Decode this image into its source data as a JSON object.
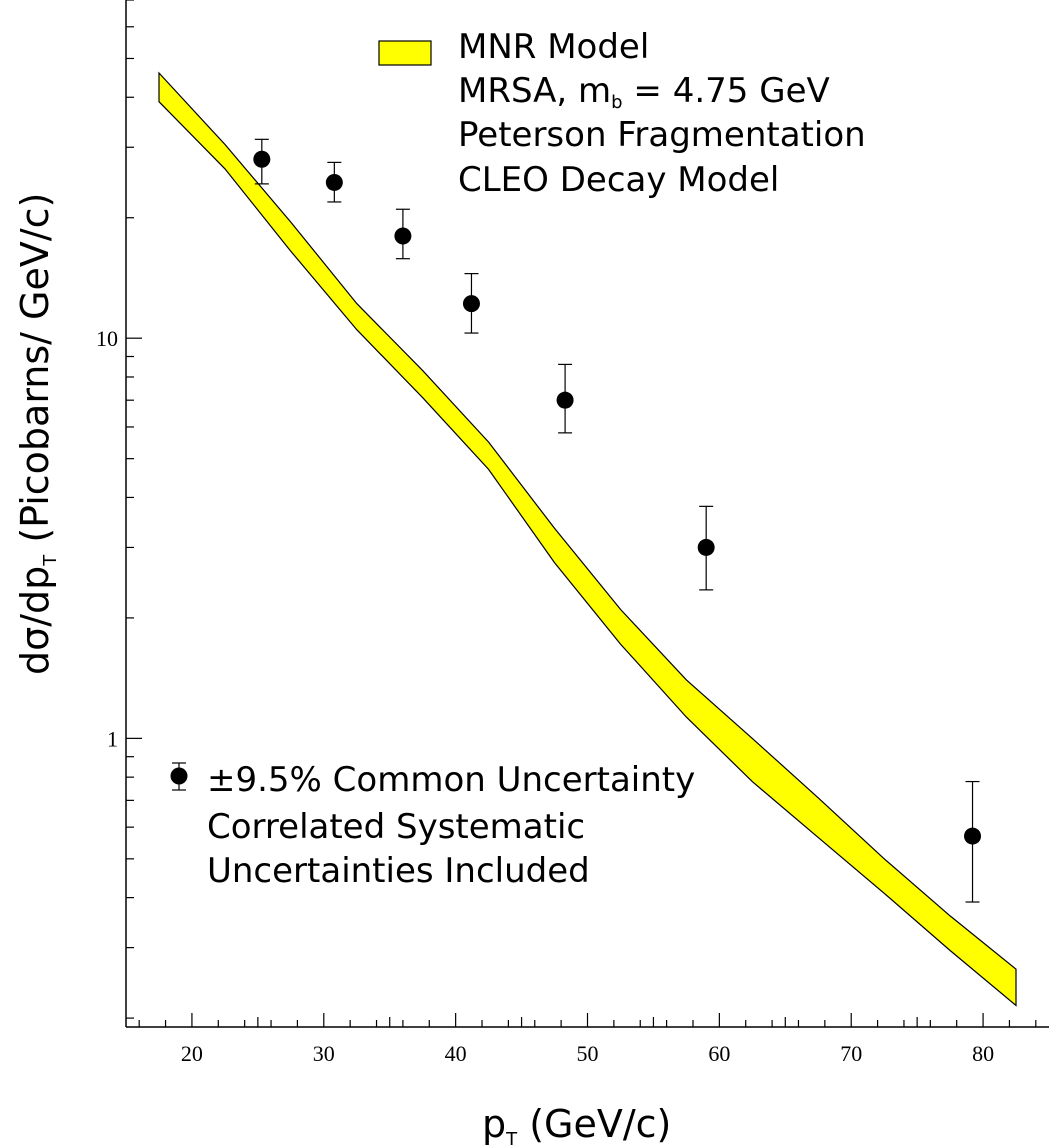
{
  "chart_data": {
    "type": "scatter",
    "x_scale": "linear",
    "y_scale": "log",
    "xlim": [
      15,
      85
    ],
    "ylim": [
      0.19,
      70
    ],
    "xlabel": "p_T (GeV/c)",
    "ylabel": "dσ/dp_T (Picobarns/ GeV/c)",
    "x_ticks": [
      20,
      30,
      40,
      50,
      60,
      70,
      80
    ],
    "x_tick_labels": [
      "20",
      "30",
      "40",
      "50",
      "60",
      "70",
      "80"
    ],
    "y_ticks": [
      1,
      10
    ],
    "y_tick_labels": [
      "1",
      "10"
    ],
    "series": [
      {
        "kind": "points-with-errors",
        "points": [
          {
            "x": 25.3,
            "y": 28.0,
            "err_low": 24.3,
            "err_high": 31.4
          },
          {
            "x": 30.8,
            "y": 24.5,
            "err_low": 21.9,
            "err_high": 27.5
          },
          {
            "x": 36.0,
            "y": 18.0,
            "err_low": 15.8,
            "err_high": 21.0
          },
          {
            "x": 41.2,
            "y": 12.2,
            "err_low": 10.3,
            "err_high": 14.5
          },
          {
            "x": 48.3,
            "y": 7.0,
            "err_low": 5.8,
            "err_high": 8.6
          },
          {
            "x": 59.0,
            "y": 3.0,
            "err_low": 2.35,
            "err_high": 3.8
          },
          {
            "x": 79.2,
            "y": 0.57,
            "err_low": 0.39,
            "err_high": 0.78
          }
        ]
      },
      {
        "kind": "band",
        "color": "#ffff00",
        "x": [
          17.5,
          22.5,
          27.5,
          32.5,
          37.5,
          42.5,
          47.5,
          52.5,
          57.5,
          62.5,
          67.5,
          72.5,
          77.5,
          82.5
        ],
        "upper": [
          46.0,
          30.5,
          19.5,
          12.2,
          8.3,
          5.5,
          3.35,
          2.1,
          1.4,
          1.0,
          0.71,
          0.5,
          0.36,
          0.265
        ],
        "lower": [
          39.0,
          26.5,
          16.5,
          10.5,
          7.1,
          4.7,
          2.75,
          1.72,
          1.13,
          0.78,
          0.565,
          0.41,
          0.295,
          0.215
        ]
      }
    ]
  },
  "legend": {
    "model": {
      "swatch_color": "#ffff00",
      "lines": [
        "MNR Model",
        "MRSA, m",
        "Peterson Fragmentation",
        "CLEO Decay Model"
      ],
      "mass_subscript": "b",
      "mass_value": " = 4.75 GeV"
    },
    "data": {
      "lines": [
        "±9.5% Common Uncertainty",
        "Correlated Systematic",
        "Uncertainties Included"
      ]
    }
  },
  "axis_text": {
    "x_main": "p",
    "x_sub": "T",
    "x_rest": " (GeV/c)",
    "y_main": "dσ/dp",
    "y_sub": "T",
    "y_rest": " (Picobarns/ GeV/c)"
  }
}
